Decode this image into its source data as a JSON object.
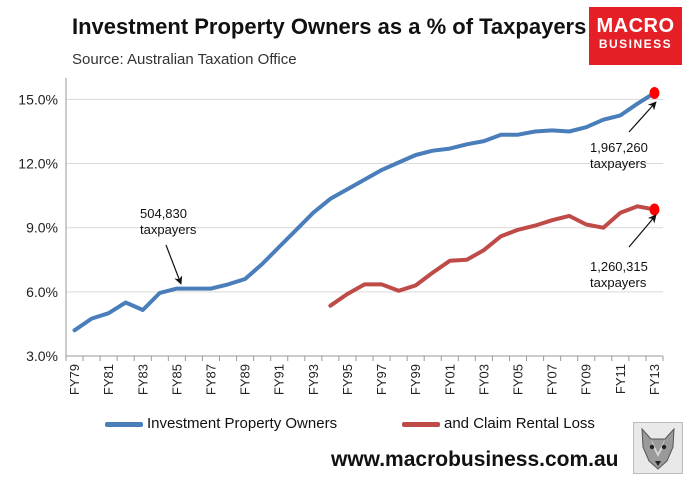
{
  "header": {
    "title": "Investment Property Owners as a % of Taxpayers",
    "subtitle": "Source: Australian Taxation Office"
  },
  "logo": {
    "line1": "MACRO",
    "line2": "BUSINESS"
  },
  "footer": {
    "website": "www.macrobusiness.com.au"
  },
  "colors": {
    "blue": "#4a7ebb",
    "red": "#be4b48",
    "marker": "#ff0000",
    "logo_bg": "#e41f26"
  },
  "chart_data": {
    "type": "line",
    "title": "Investment Property Owners as a % of Taxpayers",
    "subtitle": "Source: Australian Taxation Office",
    "x": [
      "FY79",
      "FY80",
      "FY81",
      "FY82",
      "FY83",
      "FY84",
      "FY85",
      "FY86",
      "FY87",
      "FY88",
      "FY89",
      "FY90",
      "FY91",
      "FY92",
      "FY93",
      "FY94",
      "FY95",
      "FY96",
      "FY97",
      "FY98",
      "FY99",
      "FY00",
      "FY01",
      "FY02",
      "FY03",
      "FY04",
      "FY05",
      "FY06",
      "FY07",
      "FY08",
      "FY09",
      "FY10",
      "FY11",
      "FY12",
      "FY13"
    ],
    "x_tick_labels": [
      "FY79",
      "FY81",
      "FY83",
      "FY85",
      "FY87",
      "FY89",
      "FY91",
      "FY93",
      "FY95",
      "FY97",
      "FY99",
      "FY01",
      "FY03",
      "FY05",
      "FY07",
      "FY09",
      "FY11",
      "FY13"
    ],
    "ylim": [
      3,
      16
    ],
    "yticks": [
      3,
      6,
      9,
      12,
      15
    ],
    "ytick_labels": [
      "3.0%",
      "6.0%",
      "9.0%",
      "12.0%",
      "15.0%"
    ],
    "series": [
      {
        "name": "Investment Property Owners",
        "color": "#4a7ebb",
        "values": [
          4.2,
          4.75,
          5.0,
          5.5,
          5.15,
          5.95,
          6.15,
          6.15,
          6.15,
          6.35,
          6.6,
          7.3,
          8.1,
          8.9,
          9.7,
          10.35,
          10.8,
          11.25,
          11.7,
          12.05,
          12.4,
          12.6,
          12.7,
          12.9,
          13.05,
          13.35,
          13.35,
          13.5,
          13.55,
          13.5,
          13.7,
          14.05,
          14.25,
          14.8,
          15.3
        ]
      },
      {
        "name": "and Claim Rental Loss",
        "color": "#be4b48",
        "values": [
          null,
          null,
          null,
          null,
          null,
          null,
          null,
          null,
          null,
          null,
          null,
          null,
          null,
          null,
          null,
          5.35,
          5.9,
          6.35,
          6.35,
          6.05,
          6.3,
          6.9,
          7.45,
          7.5,
          7.95,
          8.6,
          8.9,
          9.1,
          9.35,
          9.55,
          9.15,
          9.0,
          9.7,
          10.0,
          9.85
        ]
      }
    ],
    "highlight_points": [
      {
        "series": 0,
        "x": "FY13",
        "y": 15.3
      },
      {
        "series": 1,
        "x": "FY13",
        "y": 9.85
      }
    ],
    "annotations": [
      {
        "lines": [
          "504,830",
          "taxpayers"
        ],
        "points_to": {
          "series": 0,
          "x": "FY85"
        }
      },
      {
        "lines": [
          "1,967,260",
          "taxpayers"
        ],
        "points_to": {
          "series": 0,
          "x": "FY13"
        }
      },
      {
        "lines": [
          "1,260,315",
          "taxpayers"
        ],
        "points_to": {
          "series": 1,
          "x": "FY13"
        }
      }
    ],
    "legend": [
      "Investment Property Owners",
      "and Claim Rental Loss"
    ],
    "legend_position": "bottom",
    "grid": "horizontal"
  }
}
